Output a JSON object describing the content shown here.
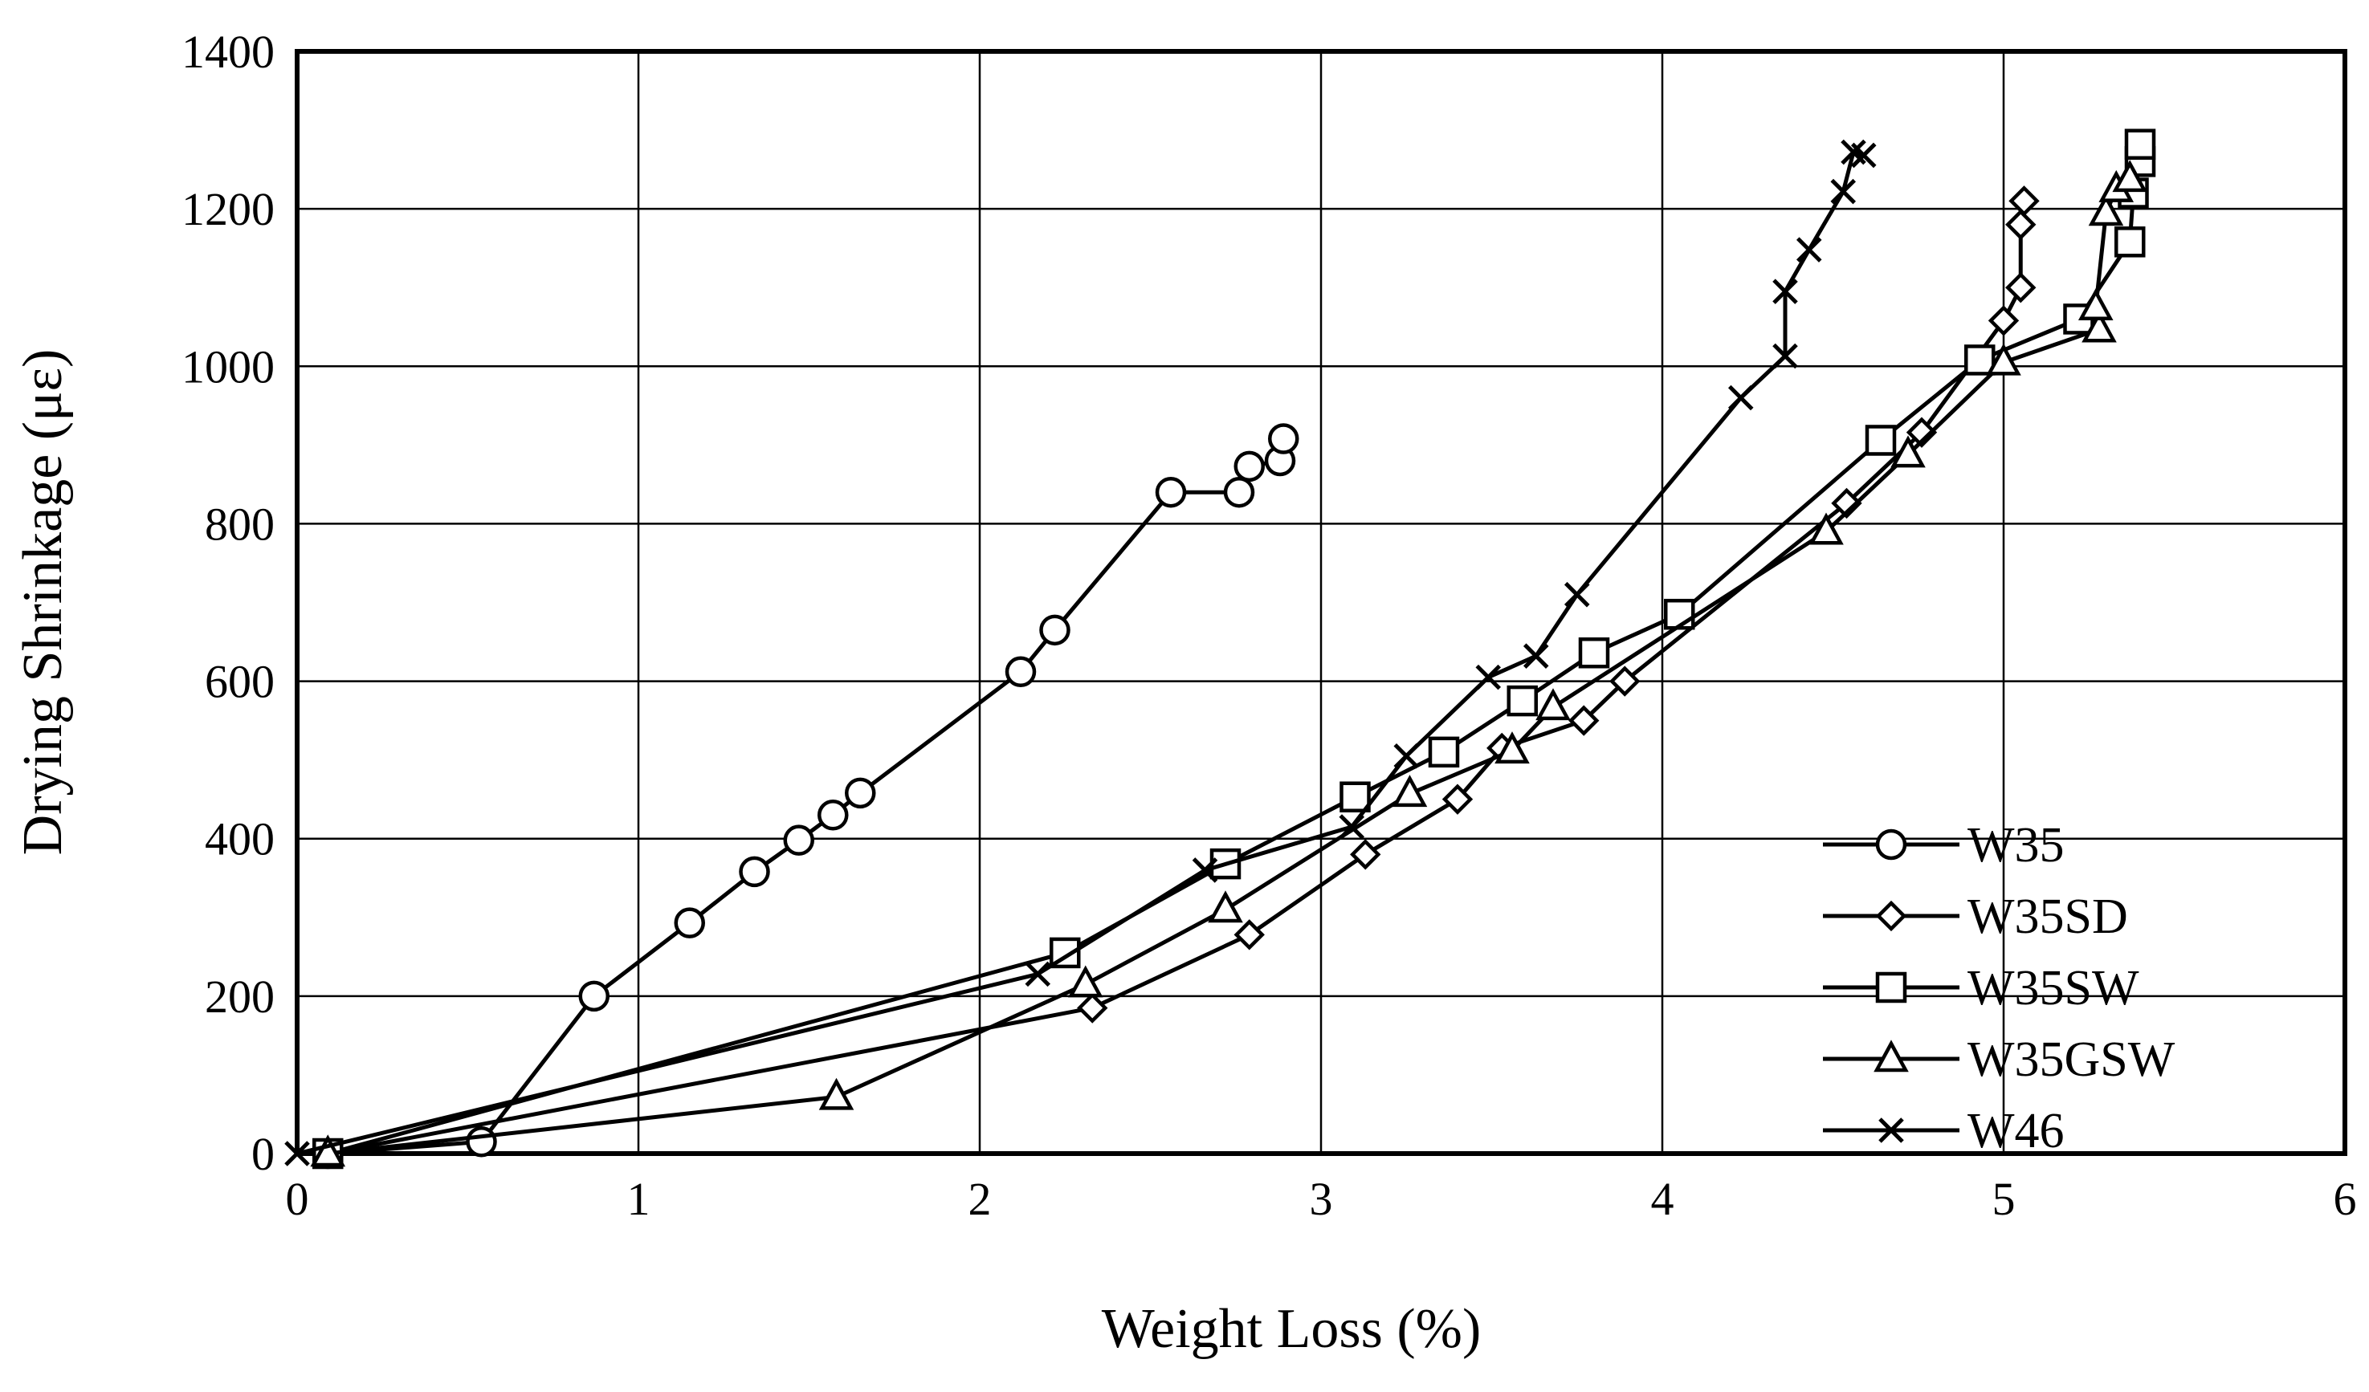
{
  "chart_data": {
    "type": "line",
    "title": "",
    "xlabel": "Weight Loss (%)",
    "ylabel": "Drying Shrinkage (με)",
    "xlim": [
      0,
      6
    ],
    "ylim": [
      0,
      1400
    ],
    "xticks": [
      "0",
      "1",
      "2",
      "3",
      "4",
      "5",
      "6"
    ],
    "yticks": [
      "0",
      "200",
      "400",
      "600",
      "800",
      "1000",
      "1200",
      "1400"
    ],
    "grid": true,
    "legend_position": "bottom-right",
    "series": [
      {
        "name": "W35",
        "marker": "circle",
        "x": [
          0.09,
          0.54,
          0.87,
          1.15,
          1.34,
          1.47,
          1.57,
          1.65,
          2.12,
          2.22,
          2.56,
          2.76,
          2.79,
          2.88,
          2.89
        ],
        "y": [
          0,
          15,
          200,
          293,
          358,
          398,
          430,
          458,
          612,
          665,
          840,
          840,
          873,
          880,
          908
        ]
      },
      {
        "name": "W35SD",
        "marker": "diamond",
        "x": [
          0.09,
          2.33,
          2.79,
          3.13,
          3.4,
          3.53,
          3.77,
          3.89,
          4.54,
          4.76,
          5.0,
          5.05,
          5.05,
          5.06
        ],
        "y": [
          0,
          185,
          278,
          380,
          450,
          515,
          550,
          600,
          826,
          916,
          1058,
          1100,
          1180,
          1210
        ]
      },
      {
        "name": "W35SW",
        "marker": "square",
        "x": [
          0.09,
          2.25,
          2.72,
          3.1,
          3.36,
          3.59,
          3.8,
          4.05,
          4.64,
          4.93,
          5.22,
          5.37,
          5.38,
          5.4,
          5.4
        ],
        "y": [
          0,
          255,
          368,
          453,
          510,
          575,
          636,
          685,
          906,
          1008,
          1060,
          1158,
          1220,
          1260,
          1282
        ]
      },
      {
        "name": "W35GSW",
        "marker": "triangle",
        "x": [
          0.09,
          1.58,
          2.31,
          2.72,
          3.26,
          3.56,
          3.68,
          4.48,
          4.72,
          5.0,
          5.28,
          5.27,
          5.3,
          5.33,
          5.37
        ],
        "y": [
          0,
          72,
          215,
          310,
          457,
          512,
          567,
          790,
          888,
          1005,
          1047,
          1075,
          1195,
          1225,
          1238
        ]
      },
      {
        "name": "W46",
        "marker": "cross",
        "x": [
          0.0,
          2.17,
          2.66,
          3.09,
          3.25,
          3.49,
          3.63,
          3.75,
          4.23,
          4.36,
          4.36,
          4.43,
          4.53,
          4.56,
          4.59
        ],
        "y": [
          0,
          228,
          360,
          415,
          505,
          605,
          632,
          710,
          960,
          1013,
          1095,
          1148,
          1222,
          1272,
          1268
        ]
      }
    ]
  }
}
